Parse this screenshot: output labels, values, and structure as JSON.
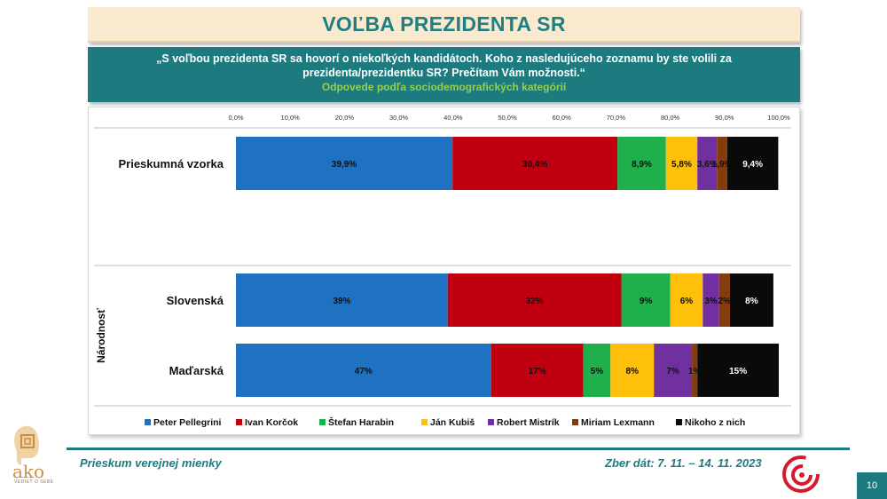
{
  "header": {
    "title": "VOĽBA PREZIDENTA SR",
    "question_line1": "„S voľbou prezidenta SR sa hovorí o niekoľkých kandidátoch. Koho z nasledujúceho zoznamu by ste volili za",
    "question_line2": "prezidenta/prezidentku SR? Prečítam Vám možnosti.“",
    "subtitle": "Odpovede podľa sociodemografických kategórií"
  },
  "footer": {
    "left_text": "Prieskum verejnej mienky",
    "right_text": "Zber dát: 7. 11. – 14. 11. 2023",
    "page_number": "10",
    "logo_text": "ako",
    "logo_tagline": "VEDIEŤ O SEBE"
  },
  "chart_data": {
    "type": "bar",
    "orientation": "horizontal",
    "stacked": true,
    "x_ticks": [
      "0,0%",
      "10,0%",
      "20,0%",
      "30,0%",
      "40,0%",
      "50,0%",
      "60,0%",
      "70,0%",
      "80,0%",
      "90,0%",
      "100,0%"
    ],
    "xlim": [
      0,
      100
    ],
    "group_label": "Národnosť",
    "legend_position": "bottom",
    "series": [
      {
        "name": "Peter Pellegrini",
        "color": "#1f72c1"
      },
      {
        "name": "Ivan Korčok",
        "color": "#c00010"
      },
      {
        "name": "Štefan Harabin",
        "color": "#1fb04c"
      },
      {
        "name": "Ján Kubiš",
        "color": "#ffc00b"
      },
      {
        "name": "Robert Mistrík",
        "color": "#7030a0"
      },
      {
        "name": "Miriam Lexmann",
        "color": "#843c0c"
      },
      {
        "name": "Nikoho z nich",
        "color": "#0a0a0a"
      }
    ],
    "rows": [
      {
        "category": "Prieskumná vzorka",
        "values": [
          39.9,
          30.4,
          8.9,
          5.8,
          3.6,
          1.9,
          9.4
        ],
        "labels": [
          "39,9%",
          "30,4%",
          "8,9%",
          "5,8%",
          "3,6%",
          "1,9%",
          "9,4%"
        ]
      },
      {
        "category": "Slovenská",
        "values": [
          39,
          32,
          9,
          6,
          3,
          2,
          8
        ],
        "labels": [
          "39%",
          "32%",
          "9%",
          "6%",
          "3%",
          "2%",
          "8%"
        ]
      },
      {
        "category": "Maďarská",
        "values": [
          47,
          17,
          5,
          8,
          7,
          1,
          15
        ],
        "labels": [
          "47%",
          "17%",
          "5%",
          "8%",
          "7%",
          "1%",
          "15%"
        ]
      }
    ]
  }
}
